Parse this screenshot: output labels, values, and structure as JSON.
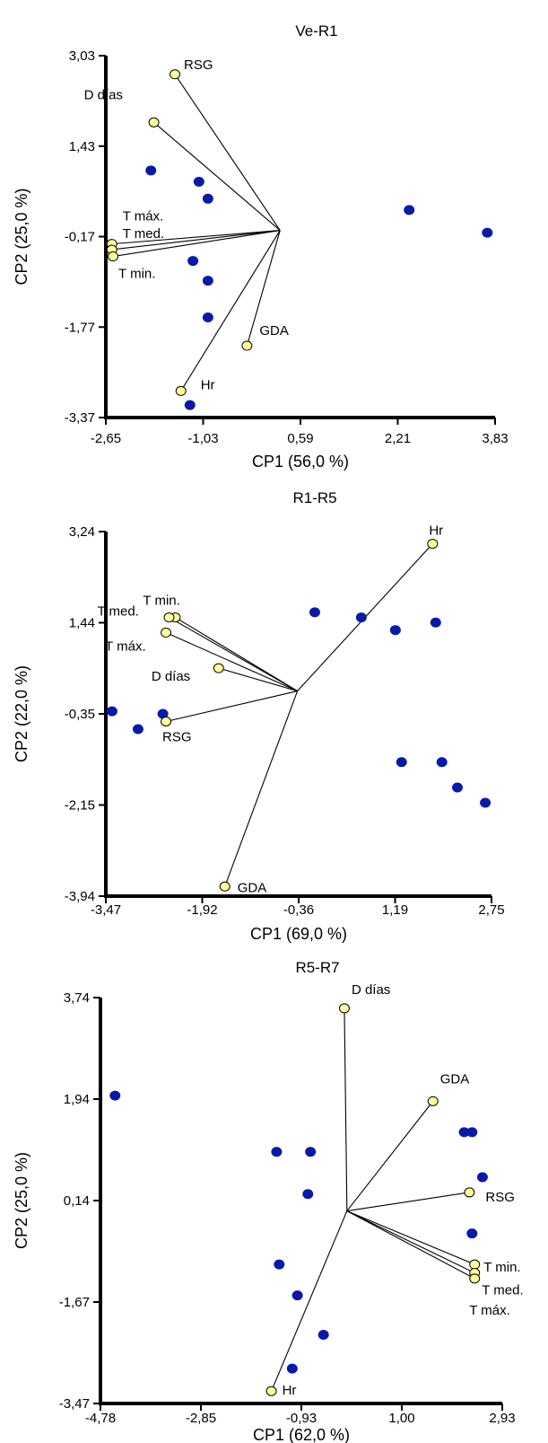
{
  "chart_data": [
    {
      "type": "scatter",
      "title": "Ve-R1",
      "xlabel": "CP1 (56,0 %)",
      "ylabel": "CP2 (25,0 %)",
      "xlim": [
        -2.65,
        3.83
      ],
      "ylim": [
        -3.37,
        3.03
      ],
      "xticks": [
        "-2,65",
        "-1,03",
        "0,59",
        "2,21",
        "3,83"
      ],
      "yticks": [
        "3,03",
        "1,43",
        "-0,17",
        "-1,77",
        "-3,37"
      ],
      "origin": [
        0.25,
        -0.06
      ],
      "observations": {
        "x": [
          -1.9,
          -1.1,
          -0.95,
          2.4,
          3.7,
          -1.2,
          -0.95,
          -0.95,
          -1.25
        ],
        "y": [
          1.0,
          0.8,
          0.5,
          0.3,
          -0.1,
          -0.6,
          -0.95,
          -1.6,
          -3.15
        ]
      },
      "variables": [
        {
          "name": "RSG",
          "x": -1.5,
          "y": 2.7
        },
        {
          "name": "D días",
          "x": -1.85,
          "y": 1.85
        },
        {
          "name": "T máx.",
          "x": -2.55,
          "y": -0.3
        },
        {
          "name": "T med.",
          "x": -2.55,
          "y": -0.4
        },
        {
          "name": "T min.",
          "x": -2.53,
          "y": -0.52
        },
        {
          "name": "GDA",
          "x": -0.3,
          "y": -2.1
        },
        {
          "name": "Hr",
          "x": -1.4,
          "y": -2.9
        }
      ]
    },
    {
      "type": "scatter",
      "title": "R1-R5",
      "xlabel": "CP1 (69,0 %)",
      "ylabel": "CP2 (22,0 %)",
      "xlim": [
        -3.47,
        2.75
      ],
      "ylim": [
        -3.94,
        3.24
      ],
      "xticks": [
        "-3,47",
        "-1,92",
        "-0,36",
        "1,19",
        "2,75"
      ],
      "yticks": [
        "3,24",
        "1,44",
        "-0,35",
        "-2,15",
        "-3,94"
      ],
      "origin": [
        -0.38,
        0.1
      ],
      "observations": {
        "x": [
          -0.1,
          0.65,
          1.2,
          1.85,
          -3.37,
          -2.95,
          -2.55,
          1.3,
          1.95,
          2.2,
          2.65
        ],
        "y": [
          1.65,
          1.55,
          1.3,
          1.45,
          -0.3,
          -0.65,
          -0.35,
          -1.3,
          -1.3,
          -1.8,
          -2.1
        ]
      },
      "variables": [
        {
          "name": "Hr",
          "x": 1.8,
          "y": 3.0
        },
        {
          "name": "T min.",
          "x": -2.35,
          "y": 1.55
        },
        {
          "name": "T med.",
          "x": -2.45,
          "y": 1.55
        },
        {
          "name": "T máx.",
          "x": -2.5,
          "y": 1.25
        },
        {
          "name": "D días",
          "x": -1.65,
          "y": 0.55
        },
        {
          "name": "RSG",
          "x": -2.5,
          "y": -0.5
        },
        {
          "name": "GDA",
          "x": -1.55,
          "y": -3.75
        }
      ]
    },
    {
      "type": "scatter",
      "title": "R5-R7",
      "xlabel": "CP1 (62,0 %)",
      "ylabel": "CP2 (25,0 %)",
      "xlim": [
        -4.78,
        2.93
      ],
      "ylim": [
        -3.47,
        3.74
      ],
      "xticks": [
        "-4,78",
        "-2,85",
        "-0,93",
        "1,00",
        "2,93"
      ],
      "yticks": [
        "3,74",
        "1,94",
        "0,14",
        "-1,67",
        "-3,47"
      ],
      "origin": [
        -0.05,
        -0.05
      ],
      "observations": {
        "x": [
          -4.5,
          2.2,
          2.35,
          2.55,
          -1.4,
          -0.75,
          2.35,
          -0.8,
          -1.35,
          -1.0,
          -0.5,
          -1.1
        ],
        "y": [
          2.0,
          1.35,
          1.35,
          0.55,
          1.0,
          1.0,
          -0.45,
          0.25,
          -1.0,
          -1.55,
          -2.25,
          -2.85
        ]
      },
      "variables": [
        {
          "name": "D días",
          "x": -0.1,
          "y": 3.55
        },
        {
          "name": "GDA",
          "x": 1.6,
          "y": 1.9
        },
        {
          "name": "RSG",
          "x": 2.3,
          "y": 0.28
        },
        {
          "name": "T min.",
          "x": 2.4,
          "y": -1.0
        },
        {
          "name": "T med.",
          "x": 2.4,
          "y": -1.15
        },
        {
          "name": "T máx.",
          "x": 2.4,
          "y": -1.25
        },
        {
          "name": "Hr",
          "x": -1.5,
          "y": -3.25
        }
      ]
    }
  ]
}
